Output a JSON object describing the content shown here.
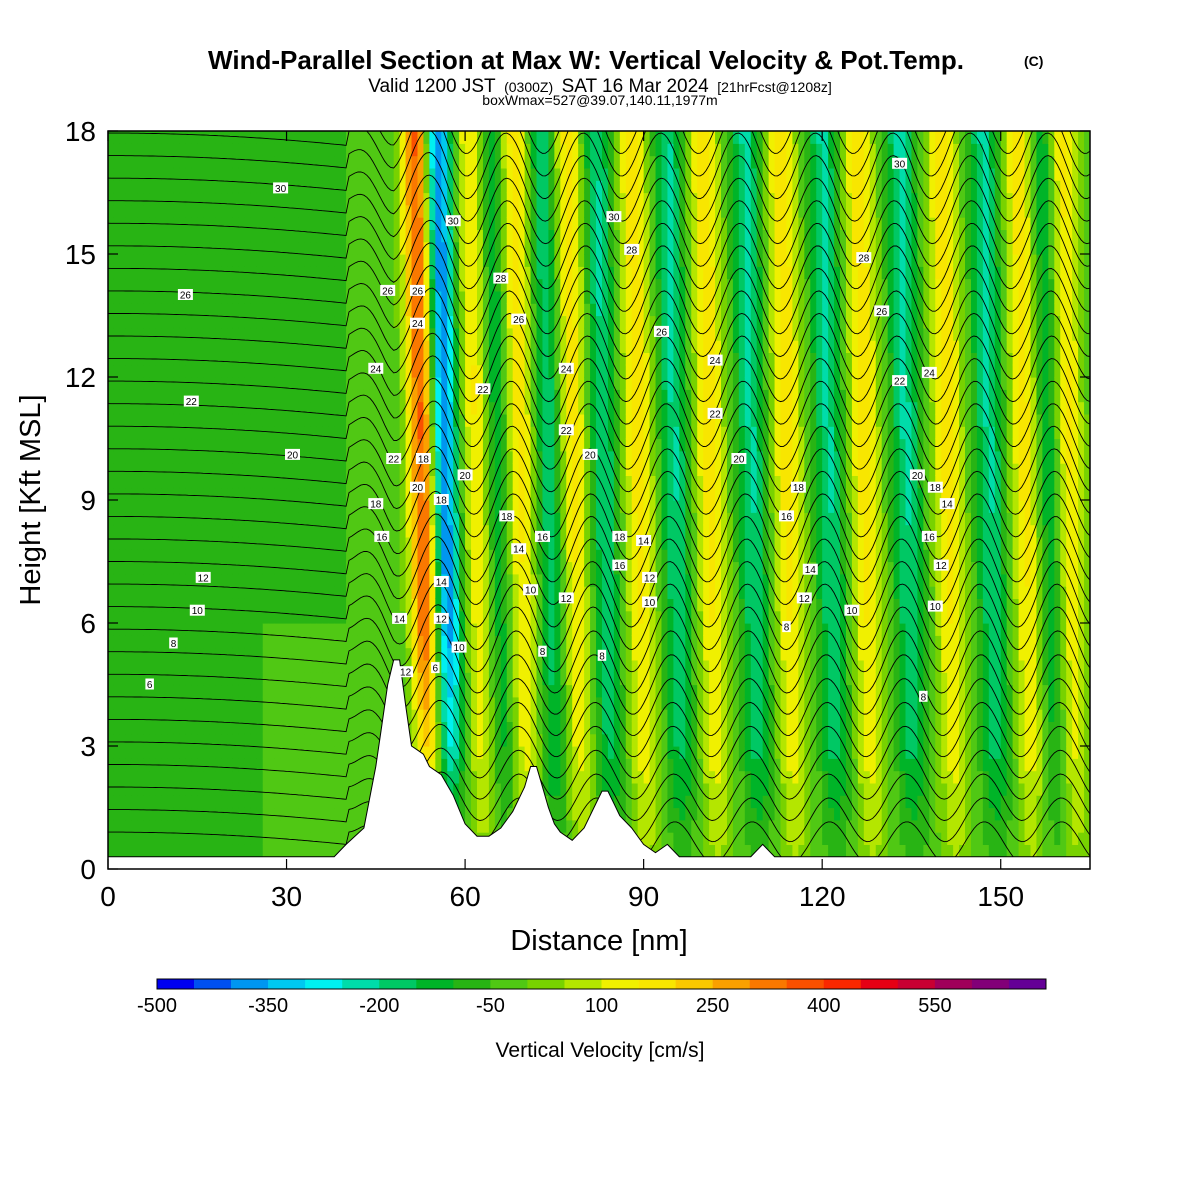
{
  "title": {
    "main": "Wind-Parallel Section at Max W: Vertical Velocity & Pot.Temp.",
    "copyright": "(C)",
    "valid_prefix": "Valid 1200 JST",
    "valid_utc": "(0300Z)",
    "valid_date": "SAT 16 Mar 2024",
    "forecast": "[21hrFcst@1208z]",
    "boxinfo": "boxWmax=527@39.07,140.11,1977m"
  },
  "chart_data": {
    "type": "heatmap",
    "xlabel": "Distance [nm]",
    "ylabel": "Height [Kft MSL]",
    "xlim": [
      0,
      165
    ],
    "ylim": [
      0,
      18
    ],
    "xticks": [
      0,
      30,
      60,
      90,
      120,
      150
    ],
    "yticks": [
      0,
      3,
      6,
      9,
      12,
      15,
      18
    ],
    "colorbar": {
      "label": "Vertical Velocity [cm/s]",
      "min": -500,
      "max": 650,
      "step": 50,
      "tick_values": [
        -500,
        -350,
        -200,
        -50,
        100,
        250,
        400,
        550
      ],
      "tick_labels": [
        "-500",
        "-350",
        "-200",
        "-50",
        "100",
        "250",
        "400",
        "550"
      ],
      "colors": [
        "#0000f0",
        "#0050f0",
        "#0096f0",
        "#00c8f0",
        "#00f0f0",
        "#00dcaa",
        "#00c864",
        "#00b428",
        "#28b414",
        "#50c814",
        "#78d200",
        "#b4e600",
        "#f0f000",
        "#f8e600",
        "#fac800",
        "#faa000",
        "#fa7800",
        "#fa5000",
        "#fa2800",
        "#e60014",
        "#c80032",
        "#a0005a",
        "#820078",
        "#640096"
      ]
    },
    "wave_crests_nm": [
      52,
      61,
      68,
      77,
      88,
      100,
      113,
      126,
      140,
      153,
      160
    ],
    "wave_troughs_nm": [
      55,
      64,
      73,
      82,
      94,
      107,
      120,
      133,
      147,
      157
    ],
    "peak_updraft_nm": 52,
    "peak_downdraft_nm": 55,
    "terrain": {
      "x": [
        0,
        38,
        40,
        43,
        45,
        46,
        47,
        48,
        49,
        50,
        51,
        52,
        53,
        54,
        56,
        58,
        60,
        62,
        64,
        66,
        68,
        70,
        71,
        72,
        73,
        74,
        75,
        76,
        78,
        80,
        82,
        83,
        84,
        85,
        86,
        88,
        90,
        92,
        94,
        96,
        98,
        100,
        108,
        110,
        112,
        165
      ],
      "y": [
        0.3,
        0.3,
        0.6,
        1.0,
        2.5,
        3.5,
        4.5,
        5.1,
        5.1,
        4.0,
        3.0,
        2.9,
        2.8,
        2.5,
        2.3,
        1.8,
        1.1,
        0.8,
        0.8,
        1.0,
        1.4,
        2.0,
        2.5,
        2.5,
        2.0,
        1.5,
        1.1,
        0.9,
        0.7,
        1.0,
        1.6,
        1.9,
        1.9,
        1.6,
        1.3,
        1.0,
        0.6,
        0.4,
        0.6,
        0.3,
        0.3,
        0.3,
        0.3,
        0.6,
        0.3,
        0.3
      ]
    },
    "theta_contour_labels": [
      {
        "v": "30",
        "x": 29,
        "y": 16.6
      },
      {
        "v": "26",
        "x": 13,
        "y": 14.0
      },
      {
        "v": "22",
        "x": 14,
        "y": 11.4
      },
      {
        "v": "20",
        "x": 31,
        "y": 10.1
      },
      {
        "v": "12",
        "x": 16,
        "y": 7.1
      },
      {
        "v": "10",
        "x": 15,
        "y": 6.3
      },
      {
        "v": "8",
        "x": 11,
        "y": 5.5
      },
      {
        "v": "6",
        "x": 7,
        "y": 4.5
      },
      {
        "v": "26",
        "x": 47,
        "y": 14.1
      },
      {
        "v": "24",
        "x": 45,
        "y": 12.2
      },
      {
        "v": "22",
        "x": 48,
        "y": 10.0
      },
      {
        "v": "18",
        "x": 45,
        "y": 8.9
      },
      {
        "v": "16",
        "x": 46,
        "y": 8.1
      },
      {
        "v": "14",
        "x": 49,
        "y": 6.1
      },
      {
        "v": "12",
        "x": 50,
        "y": 4.8
      },
      {
        "v": "26",
        "x": 52,
        "y": 14.1
      },
      {
        "v": "24",
        "x": 52,
        "y": 13.3
      },
      {
        "v": "20",
        "x": 52,
        "y": 9.3
      },
      {
        "v": "18",
        "x": 53,
        "y": 10.0
      },
      {
        "v": "30",
        "x": 58,
        "y": 15.8
      },
      {
        "v": "18",
        "x": 56,
        "y": 9.0
      },
      {
        "v": "14",
        "x": 56,
        "y": 7.0
      },
      {
        "v": "12",
        "x": 56,
        "y": 6.1
      },
      {
        "v": "6",
        "x": 55,
        "y": 4.9
      },
      {
        "v": "20",
        "x": 60,
        "y": 9.6
      },
      {
        "v": "10",
        "x": 59,
        "y": 5.4
      },
      {
        "v": "28",
        "x": 66,
        "y": 14.4
      },
      {
        "v": "26",
        "x": 69,
        "y": 13.4
      },
      {
        "v": "22",
        "x": 63,
        "y": 11.7
      },
      {
        "v": "18",
        "x": 67,
        "y": 8.6
      },
      {
        "v": "14",
        "x": 69,
        "y": 7.8
      },
      {
        "v": "16",
        "x": 73,
        "y": 8.1
      },
      {
        "v": "10",
        "x": 71,
        "y": 6.8
      },
      {
        "v": "12",
        "x": 77,
        "y": 6.6
      },
      {
        "v": "8",
        "x": 73,
        "y": 5.3
      },
      {
        "v": "24",
        "x": 77,
        "y": 12.2
      },
      {
        "v": "22",
        "x": 77,
        "y": 10.7
      },
      {
        "v": "20",
        "x": 81,
        "y": 10.1
      },
      {
        "v": "30",
        "x": 85,
        "y": 15.9
      },
      {
        "v": "28",
        "x": 88,
        "y": 15.1
      },
      {
        "v": "26",
        "x": 93,
        "y": 13.1
      },
      {
        "v": "18",
        "x": 86,
        "y": 8.1
      },
      {
        "v": "16",
        "x": 86,
        "y": 7.4
      },
      {
        "v": "14",
        "x": 90,
        "y": 8.0
      },
      {
        "v": "12",
        "x": 91,
        "y": 7.1
      },
      {
        "v": "10",
        "x": 91,
        "y": 6.5
      },
      {
        "v": "8",
        "x": 83,
        "y": 5.2
      },
      {
        "v": "24",
        "x": 102,
        "y": 12.4
      },
      {
        "v": "22",
        "x": 102,
        "y": 11.1
      },
      {
        "v": "20",
        "x": 106,
        "y": 10.0
      },
      {
        "v": "18",
        "x": 116,
        "y": 9.3
      },
      {
        "v": "16",
        "x": 114,
        "y": 8.6
      },
      {
        "v": "14",
        "x": 118,
        "y": 7.3
      },
      {
        "v": "12",
        "x": 117,
        "y": 6.6
      },
      {
        "v": "10",
        "x": 125,
        "y": 6.3
      },
      {
        "v": "8",
        "x": 114,
        "y": 5.9
      },
      {
        "v": "30",
        "x": 133,
        "y": 17.2
      },
      {
        "v": "28",
        "x": 127,
        "y": 14.9
      },
      {
        "v": "26",
        "x": 130,
        "y": 13.6
      },
      {
        "v": "22",
        "x": 133,
        "y": 11.9
      },
      {
        "v": "24",
        "x": 138,
        "y": 12.1
      },
      {
        "v": "20",
        "x": 136,
        "y": 9.6
      },
      {
        "v": "18",
        "x": 139,
        "y": 9.3
      },
      {
        "v": "16",
        "x": 138,
        "y": 8.1
      },
      {
        "v": "14",
        "x": 141,
        "y": 8.9
      },
      {
        "v": "12",
        "x": 140,
        "y": 7.4
      },
      {
        "v": "10",
        "x": 139,
        "y": 6.4
      },
      {
        "v": "8",
        "x": 137,
        "y": 4.2
      }
    ]
  }
}
